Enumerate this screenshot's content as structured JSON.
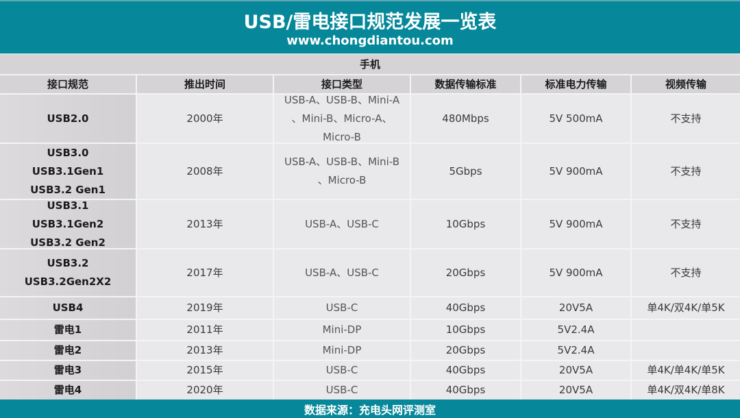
{
  "header": {
    "title": "USB/雷电接口规范发展一览表",
    "url": "www.chongdiantou.com"
  },
  "section": {
    "label": "手机"
  },
  "table": {
    "columns": [
      "接口规范",
      "推出时间",
      "接口类型",
      "数据传输标准",
      "标准电力传输",
      "视频传输"
    ],
    "rows": [
      {
        "spec": "USB2.0",
        "year": "2000年",
        "connectors": "USB-A、USB-B、Mini-A\n、Mini-B、Micro-A、\nMicro-B",
        "data_rate": "480Mbps",
        "power": "5V 500mA",
        "video": "不支持"
      },
      {
        "spec": "USB3.0\nUSB3.1Gen1\nUSB3.2 Gen1",
        "year": "2008年",
        "connectors": "USB-A、USB-B、Mini-B\n、Micro-B",
        "data_rate": "5Gbps",
        "power": "5V 900mA",
        "video": "不支持"
      },
      {
        "spec": "USB3.1\nUSB3.1Gen2\nUSB3.2 Gen2",
        "year": "2013年",
        "connectors": "USB-A、USB-C",
        "data_rate": "10Gbps",
        "power": "5V 900mA",
        "video": "不支持"
      },
      {
        "spec": "USB3.2\nUSB3.2Gen2X2",
        "year": "2017年",
        "connectors": "USB-A、USB-C",
        "data_rate": "20Gbps",
        "power": "5V 900mA",
        "video": "不支持"
      },
      {
        "spec": "USB4",
        "year": "2019年",
        "connectors": "USB-C",
        "data_rate": "40Gbps",
        "power": "20V5A",
        "video": "单4K/双4K/单5K"
      },
      {
        "spec": "雷电1",
        "year": "2011年",
        "connectors": "Mini-DP",
        "data_rate": "10Gbps",
        "power": "5V2.4A",
        "video": ""
      },
      {
        "spec": "雷电2",
        "year": "2013年",
        "connectors": "Mini-DP",
        "data_rate": "20Gbps",
        "power": "5V2.4A",
        "video": ""
      },
      {
        "spec": "雷电3",
        "year": "2015年",
        "connectors": "USB-C",
        "data_rate": "40Gbps",
        "power": "20V5A",
        "video": "单4K/单4K/单5K"
      },
      {
        "spec": "雷电4",
        "year": "2020年",
        "connectors": "USB-C",
        "data_rate": "40Gbps",
        "power": "20V5A",
        "video": "单4K/双4K/单8K"
      }
    ]
  },
  "footer": {
    "source": "数据来源：充电头网评测室"
  },
  "colors": {
    "banner": "#06889a",
    "header_cell": "#d5d3d6",
    "body_cell": "#e9e8ea",
    "grid_line": "#f4f3f5"
  }
}
